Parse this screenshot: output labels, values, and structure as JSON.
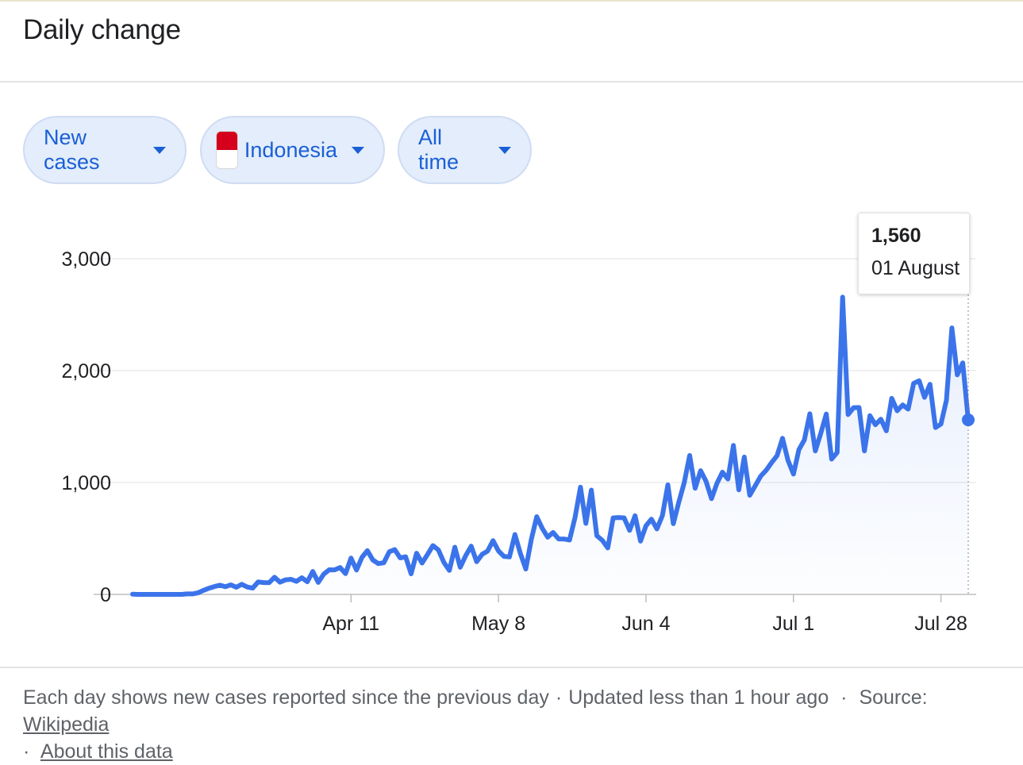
{
  "card": {
    "title": "Daily change"
  },
  "filters": {
    "metric": "New cases",
    "country": "Indonesia",
    "range": "All time"
  },
  "tooltip": {
    "value": "1,560",
    "date": "01 August"
  },
  "footer": {
    "note": "Each day shows new cases reported since the previous day",
    "updated": "Updated less than 1 hour ago",
    "source_label": "Source:",
    "source_link": "Wikipedia",
    "about_link": "About this data"
  },
  "colors": {
    "line": "#3b74ea",
    "chip_text": "#1a5fd6",
    "chip_bg": "#e3edfb"
  },
  "chart_data": {
    "type": "area",
    "title": "",
    "xlabel": "",
    "ylabel": "",
    "ylim": [
      0,
      3000
    ],
    "yticks": [
      "0",
      "1,000",
      "2,000",
      "3,000"
    ],
    "xticks": [
      "Apr 11",
      "May 8",
      "Jun 4",
      "Jul 1",
      "Jul 28"
    ],
    "grid": true,
    "x_start": "Mar 2",
    "x_end": "Aug 1",
    "series": [
      {
        "values": [
          2,
          0,
          0,
          0,
          0,
          0,
          0,
          0,
          0,
          0,
          4,
          4,
          14,
          36,
          55,
          70,
          82,
          69,
          85,
          64,
          90,
          66,
          56,
          111,
          106,
          104,
          153,
          109,
          130,
          135,
          116,
          149,
          113,
          205,
          107,
          181,
          220,
          219,
          240,
          186,
          325,
          218,
          331,
          391,
          307,
          275,
          283,
          381,
          400,
          326,
          336,
          184,
          368,
          280,
          356,
          436,
          397,
          286,
          214,
          421,
          242,
          347,
          431,
          292,
          358,
          387,
          480,
          389,
          340,
          335,
          535,
          368,
          227,
          489,
          694,
          591,
          511,
          553,
          496,
          495,
          486,
          686,
          958,
          635,
          932,
          525,
          483,
          415,
          684,
          687,
          684,
          572,
          703,
          476,
          613,
          672,
          585,
          703,
          979,
          632,
          821,
          998,
          1241,
          949,
          1106,
          1011,
          855,
          993,
          1092,
          1031,
          1331,
          934,
          1227,
          886,
          971,
          1057,
          1109,
          1177,
          1240,
          1395,
          1198,
          1075,
          1293,
          1380,
          1614,
          1282,
          1440,
          1611,
          1209,
          1268,
          2657,
          1607,
          1668,
          1670,
          1282,
          1597,
          1516,
          1566,
          1462,
          1752,
          1641,
          1693,
          1656,
          1886,
          1909,
          1761,
          1877,
          1491,
          1522,
          1735,
          2381,
          1962,
          2069,
          1560
        ]
      }
    ]
  }
}
